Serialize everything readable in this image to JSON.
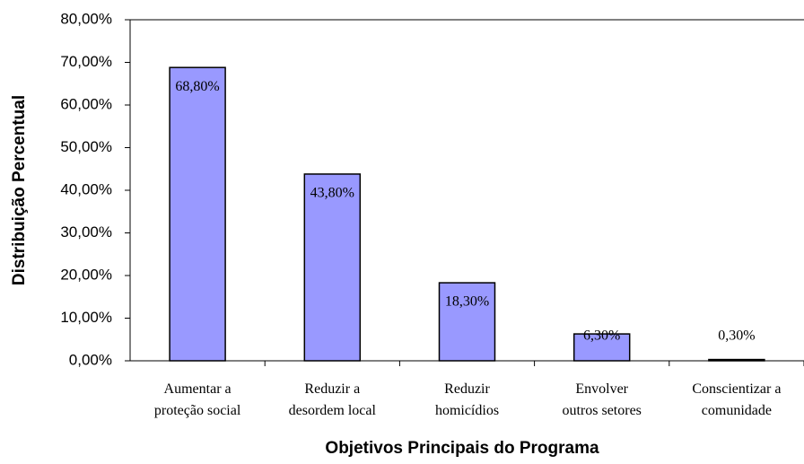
{
  "chart_data": {
    "type": "bar",
    "x_label": "Objetivos Principais do Programa",
    "y_label": "Distribuição Percentual",
    "categories": [
      "Aumentar a\nproteção social",
      "Reduzir a\ndesordem local",
      "Reduzir\nhomicídios",
      "Envolver\noutros setores",
      "Conscientizar a\ncomunidade"
    ],
    "values": [
      68.8,
      43.8,
      18.3,
      6.3,
      0.3
    ],
    "value_labels": [
      "68,80%",
      "43,80%",
      "18,30%",
      "6,30%",
      "0,30%"
    ],
    "color": "#9999ff",
    "ylim": [
      0,
      80
    ],
    "yticks": [
      {
        "value": 0,
        "label": "0,00%"
      },
      {
        "value": 10,
        "label": "10,00%"
      },
      {
        "value": 20,
        "label": "20,00%"
      },
      {
        "value": 30,
        "label": "30,00%"
      },
      {
        "value": 40,
        "label": "40,00%"
      },
      {
        "value": 50,
        "label": "50,00%"
      },
      {
        "value": 60,
        "label": "60,00%"
      },
      {
        "value": 70,
        "label": "70,00%"
      },
      {
        "value": 80,
        "label": "80,00%"
      }
    ]
  }
}
